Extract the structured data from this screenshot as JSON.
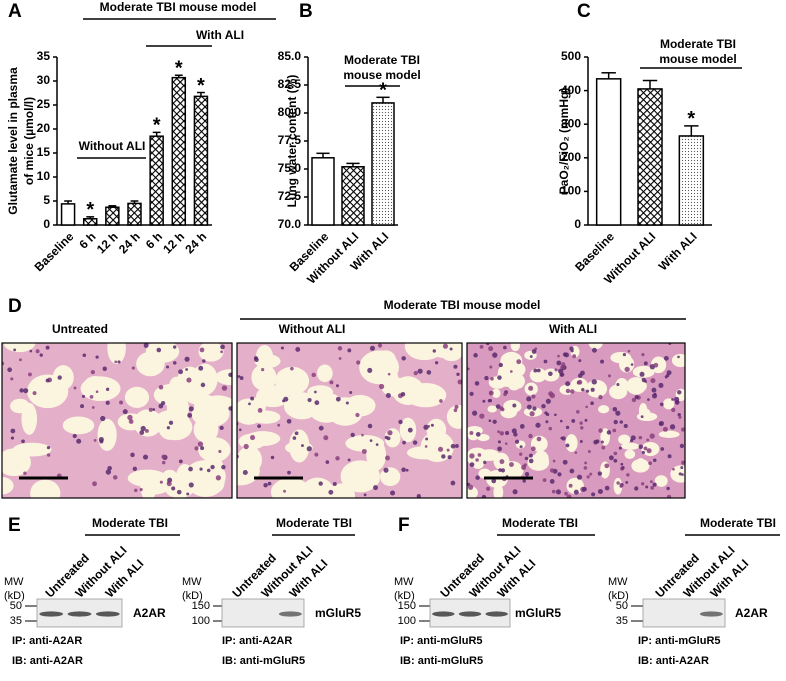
{
  "chart_data": [
    {
      "type": "bar",
      "panel": "A",
      "ylabel": [
        "Glutamate level in plasma",
        "of mice (µmol/l)"
      ],
      "categories": [
        "Baseline",
        "6 h",
        "12 h",
        "24 h",
        "6 h",
        "12 h",
        "24 h"
      ],
      "values": [
        4.4,
        1.3,
        3.7,
        4.5,
        18.5,
        30.7,
        26.8
      ],
      "errors": [
        0.6,
        0.4,
        0.3,
        0.5,
        0.8,
        0.5,
        0.8
      ],
      "patterns": [
        "none",
        "crosshatch",
        "crosshatch",
        "crosshatch",
        "crosshatch",
        "crosshatch",
        "crosshatch"
      ],
      "markers": [
        null,
        "*",
        null,
        null,
        "*",
        "*",
        "*"
      ],
      "color": "#000000",
      "ylim": [
        0,
        35
      ],
      "yticks": [
        0,
        5,
        10,
        15,
        20,
        25,
        30,
        35
      ],
      "annotations": [
        "Moderate TBI mouse model",
        "Without ALI",
        "With ALI"
      ]
    },
    {
      "type": "bar",
      "panel": "B",
      "ylabel": [
        "Lung water content (%)"
      ],
      "categories": [
        "Baseline",
        "Without ALI",
        "With ALI"
      ],
      "values": [
        76.0,
        75.2,
        80.9
      ],
      "errors": [
        0.4,
        0.3,
        0.5
      ],
      "patterns": [
        "none",
        "crosshatch",
        "dots"
      ],
      "markers": [
        null,
        null,
        "*"
      ],
      "color": "#000000",
      "ylim": [
        70,
        85
      ],
      "yticks": [
        {
          "value": 70,
          "label": "70.0"
        },
        72.5,
        {
          "value": 75,
          "label": "75.0"
        },
        77.5,
        {
          "value": 80,
          "label": "80.0"
        },
        82.5,
        {
          "value": 85,
          "label": "85.0"
        }
      ],
      "annotations": [
        "Moderate TBI",
        "mouse model"
      ]
    },
    {
      "type": "bar",
      "panel": "C",
      "ylabel": [
        "PaO₂/FiO₂ (mmHg)"
      ],
      "categories": [
        "Baseline",
        "Without ALI",
        "With ALI"
      ],
      "values": [
        435,
        405,
        265
      ],
      "errors": [
        18,
        25,
        30
      ],
      "patterns": [
        "none",
        "crosshatch",
        "dots"
      ],
      "markers": [
        null,
        null,
        "*"
      ],
      "color": "#000000",
      "ylim": [
        0,
        500
      ],
      "yticks": [
        0,
        100,
        200,
        300,
        400,
        500
      ],
      "annotations": [
        "Moderate TBI",
        "mouse model"
      ]
    }
  ],
  "micrographs": {
    "panel": "D",
    "header": "Moderate TBI mouse model",
    "titles": [
      "Untreated",
      "Without ALI",
      "With ALI"
    ]
  },
  "blots": [
    {
      "panel": "E",
      "header": "Moderate TBI",
      "lanes": [
        "Untreated",
        "Without ALI",
        "With ALI"
      ],
      "mw": [
        "MW",
        "(kD)"
      ],
      "sizes": [
        50,
        35
      ],
      "band": "A2AR",
      "ip": "IP: anti-A2AR",
      "ib": "IB: anti-A2AR"
    },
    {
      "header": "Moderate TBI",
      "lanes": [
        "Untreated",
        "Without ALI",
        "With ALI"
      ],
      "mw": [
        "MW",
        "(kD)"
      ],
      "sizes": [
        150,
        100
      ],
      "band": "mGluR5",
      "ip": "IP: anti-A2AR",
      "ib": "IB: anti-mGluR5"
    },
    {
      "panel": "F",
      "header": "Moderate TBI",
      "lanes": [
        "Untreated",
        "Without ALI",
        "With ALI"
      ],
      "mw": [
        "MW",
        "(kD)"
      ],
      "sizes": [
        150,
        100
      ],
      "band": "mGluR5",
      "ip": "IP: anti-mGluR5",
      "ib": "IB: anti-mGluR5"
    },
    {
      "header": "Moderate TBI",
      "lanes": [
        "Untreated",
        "Without ALI",
        "With ALI"
      ],
      "mw": [
        "MW",
        "(kD)"
      ],
      "sizes": [
        50,
        35
      ],
      "band": "A2AR",
      "ip": "IP: anti-mGluR5",
      "ib": "IB: anti-A2AR"
    }
  ]
}
